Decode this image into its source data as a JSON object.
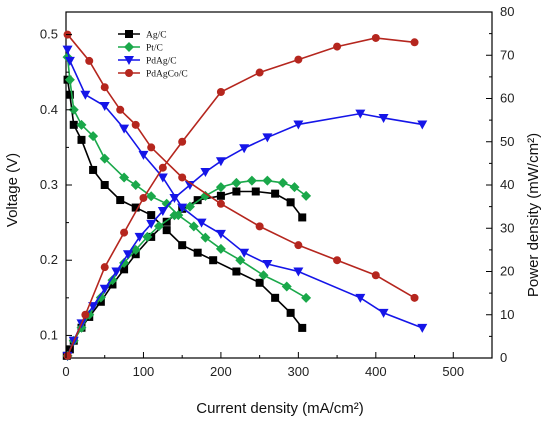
{
  "chart_data": {
    "type": "line",
    "title": "",
    "xlabel": "Current density (mA/cm²)",
    "ylabel": "Voltage (V)",
    "y2label": "Power density (mW/cm²)",
    "xlim": [
      0,
      550
    ],
    "ylim": [
      0.07,
      0.53
    ],
    "y2lim": [
      0,
      80
    ],
    "xticks": [
      "0",
      "100",
      "200",
      "300",
      "400",
      "500"
    ],
    "yticks": [
      "0.1",
      "0.2",
      "0.3",
      "0.4",
      "0.5"
    ],
    "y2ticks": [
      "0",
      "10",
      "20",
      "30",
      "40",
      "50",
      "60",
      "70",
      "80"
    ],
    "grid": false,
    "legend_position": "top-left",
    "series": [
      {
        "name": "Ag/C",
        "color": "#000000",
        "marker": "square",
        "voltage": {
          "x": [
            2,
            5,
            10,
            20,
            35,
            50,
            70,
            90,
            110,
            130,
            150,
            170,
            190,
            220,
            250,
            270,
            290,
            305
          ],
          "y": [
            0.44,
            0.42,
            0.38,
            0.36,
            0.32,
            0.3,
            0.28,
            0.27,
            0.26,
            0.24,
            0.22,
            0.21,
            0.2,
            0.185,
            0.17,
            0.15,
            0.13,
            0.11
          ]
        },
        "power": {
          "x": [
            1,
            5,
            10,
            20,
            30,
            45,
            60,
            75,
            90,
            110,
            130,
            150,
            170,
            200,
            220,
            245,
            270,
            290,
            305
          ],
          "y": [
            0.5,
            2,
            4,
            7,
            9.5,
            13,
            17,
            20.5,
            24,
            28,
            31.5,
            34.5,
            36.5,
            37.5,
            38.5,
            38.5,
            38,
            36,
            32.5
          ]
        }
      },
      {
        "name": "Pt/C",
        "color": "#1aa84a",
        "marker": "diamond",
        "voltage": {
          "x": [
            2,
            5,
            10,
            20,
            35,
            50,
            75,
            90,
            110,
            130,
            145,
            165,
            180,
            200,
            225,
            255,
            285,
            310
          ],
          "y": [
            0.47,
            0.44,
            0.4,
            0.38,
            0.365,
            0.335,
            0.31,
            0.3,
            0.285,
            0.275,
            0.26,
            0.245,
            0.23,
            0.215,
            0.2,
            0.18,
            0.165,
            0.15
          ]
        },
        "power": {
          "x": [
            2,
            10,
            20,
            30,
            45,
            60,
            75,
            90,
            105,
            120,
            140,
            160,
            180,
            200,
            220,
            240,
            260,
            280,
            295,
            310
          ],
          "y": [
            0.5,
            4,
            7,
            10,
            14,
            18,
            22,
            25,
            28,
            30.5,
            33,
            35,
            37.5,
            39.5,
            40.5,
            41,
            41,
            40.5,
            39.5,
            37.5
          ]
        }
      },
      {
        "name": "PdAg/C",
        "color": "#1515e8",
        "marker": "triangle-down",
        "voltage": {
          "x": [
            2,
            5,
            25,
            50,
            75,
            100,
            125,
            150,
            175,
            200,
            230,
            260,
            300,
            380,
            410,
            460
          ],
          "y": [
            0.48,
            0.465,
            0.42,
            0.405,
            0.375,
            0.34,
            0.31,
            0.27,
            0.25,
            0.235,
            0.21,
            0.195,
            0.185,
            0.15,
            0.13,
            0.11
          ]
        },
        "power": {
          "x": [
            2,
            10,
            20,
            35,
            50,
            65,
            80,
            95,
            110,
            125,
            140,
            160,
            180,
            200,
            230,
            260,
            300,
            380,
            410,
            460
          ],
          "y": [
            0.5,
            4,
            8,
            12,
            16,
            20,
            24,
            28,
            31,
            34,
            37,
            40,
            43,
            45.5,
            48.5,
            51,
            54,
            56.5,
            55.5,
            54
          ]
        }
      },
      {
        "name": "PdAgCo/C",
        "color": "#b5261e",
        "marker": "circle",
        "voltage": {
          "x": [
            2,
            30,
            50,
            70,
            90,
            110,
            150,
            200,
            250,
            300,
            350,
            400,
            450
          ],
          "y": [
            0.5,
            0.465,
            0.43,
            0.4,
            0.38,
            0.35,
            0.31,
            0.275,
            0.245,
            0.22,
            0.2,
            0.18,
            0.15
          ]
        },
        "power": {
          "x": [
            2,
            25,
            50,
            75,
            100,
            125,
            150,
            200,
            250,
            300,
            350,
            400,
            450
          ],
          "y": [
            0.5,
            10,
            21,
            29,
            37,
            44,
            50,
            61.5,
            66,
            69,
            72,
            74,
            73
          ]
        }
      }
    ]
  }
}
